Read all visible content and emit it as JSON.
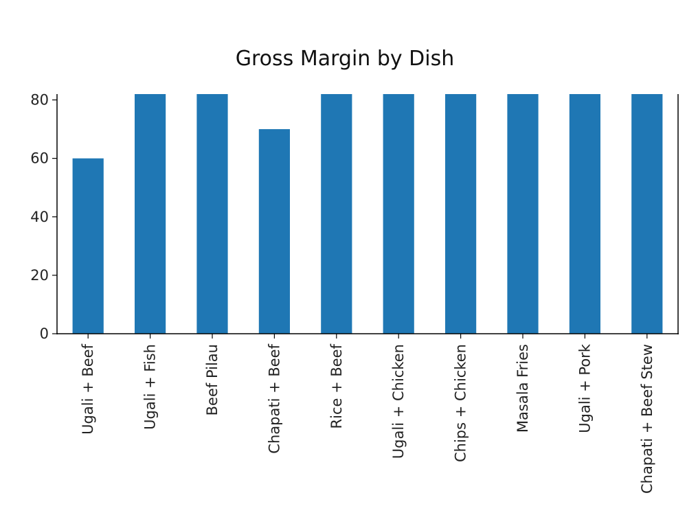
{
  "chart_data": {
    "type": "bar",
    "title": "Gross Margin by Dish",
    "xlabel": "",
    "ylabel": "",
    "categories": [
      "Ugali + Beef",
      "Ugali + Fish",
      "Beef Pilau",
      "Chapati + Beef",
      "Rice + Beef",
      "Ugali + Chicken",
      "Chips + Chicken",
      "Masala Fries",
      "Ugali + Pork",
      "Chapati + Beef Stew"
    ],
    "values": [
      60,
      82,
      82,
      70,
      82,
      82,
      82,
      82,
      82,
      82
    ],
    "ylim": [
      0,
      82
    ],
    "yticks": [
      0,
      20,
      40,
      60,
      80
    ],
    "ytick_labels": [
      "0",
      "20",
      "40",
      "60",
      "80"
    ],
    "grid": false,
    "colors": {
      "bar": "#1f77b4",
      "axis": "#000000"
    }
  }
}
